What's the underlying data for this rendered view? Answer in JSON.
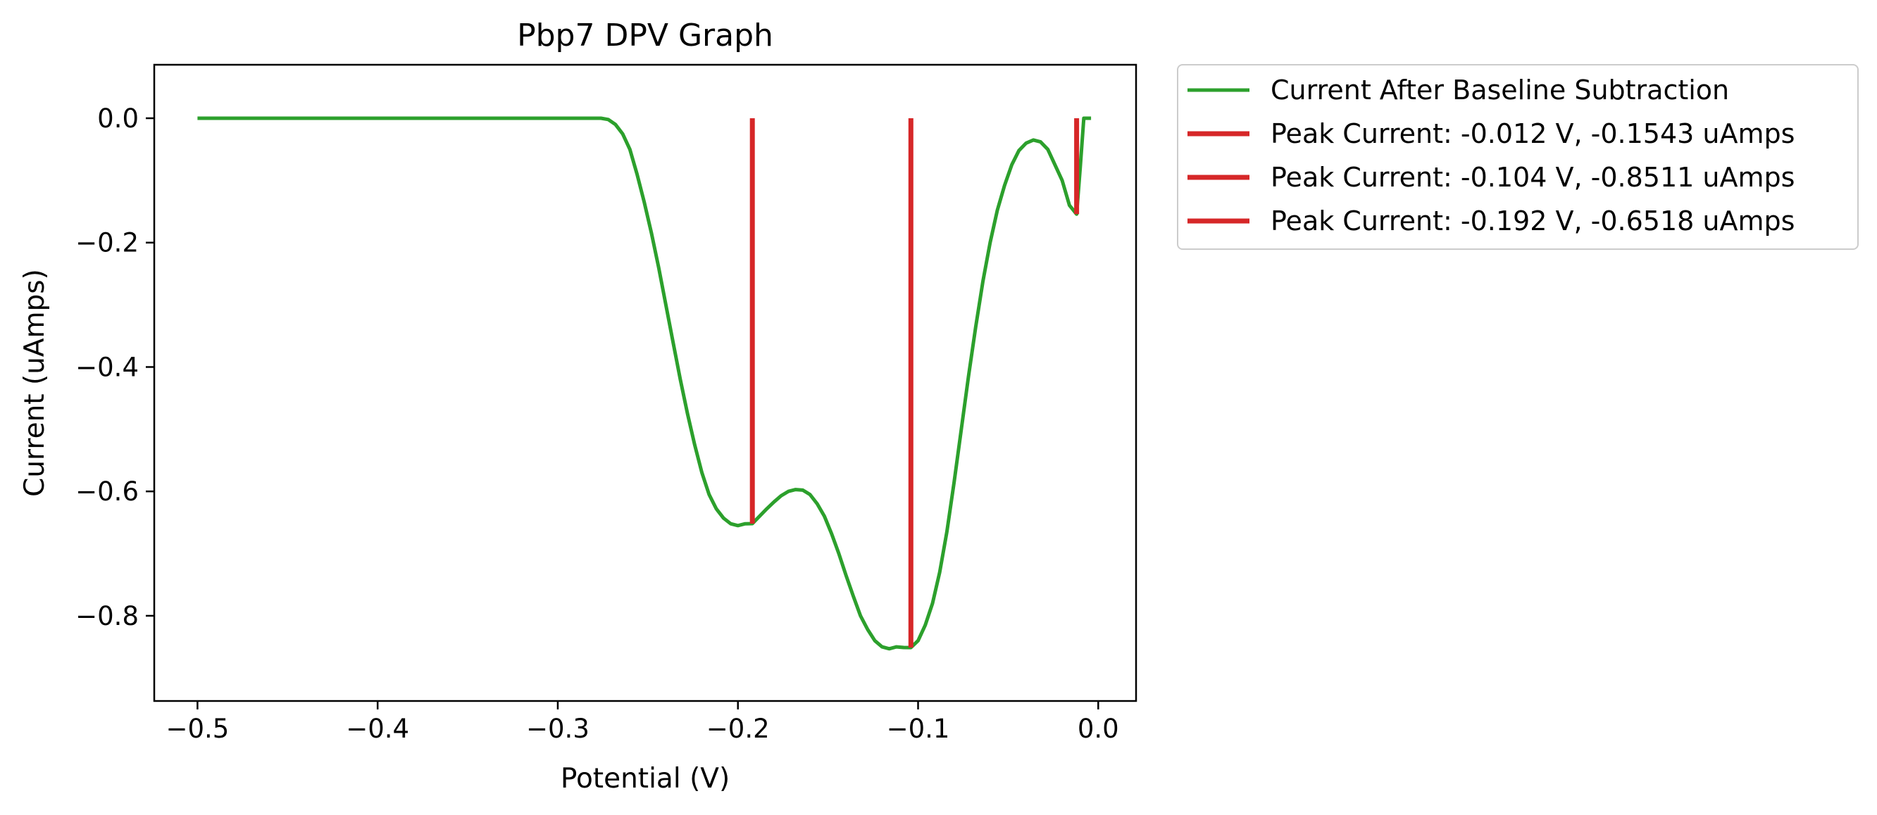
{
  "chart_data": {
    "type": "line",
    "title": "Pbp7 DPV Graph",
    "xlabel": "Potential (V)",
    "ylabel": "Current (uAmps)",
    "xlim": [
      -0.524,
      0.021
    ],
    "ylim": [
      -0.937,
      0.086
    ],
    "x_ticks": [
      -0.5,
      -0.4,
      -0.3,
      -0.2,
      -0.1,
      0.0
    ],
    "x_tick_labels": [
      "−0.5",
      "−0.4",
      "−0.3",
      "−0.2",
      "−0.1",
      "0.0"
    ],
    "y_ticks": [
      0.0,
      -0.2,
      -0.4,
      -0.6,
      -0.8
    ],
    "y_tick_labels": [
      "0.0",
      "−0.2",
      "−0.4",
      "−0.6",
      "−0.8"
    ],
    "grid": false,
    "legend": {
      "placement": "outside-upper-right"
    },
    "series": [
      {
        "name": "Current After Baseline Subtraction",
        "kind": "line",
        "color": "#2ca02c",
        "x": [
          -0.5,
          -0.48,
          -0.46,
          -0.44,
          -0.42,
          -0.4,
          -0.38,
          -0.36,
          -0.34,
          -0.32,
          -0.3,
          -0.29,
          -0.28,
          -0.276,
          -0.272,
          -0.268,
          -0.264,
          -0.26,
          -0.256,
          -0.252,
          -0.248,
          -0.244,
          -0.24,
          -0.236,
          -0.232,
          -0.228,
          -0.224,
          -0.22,
          -0.216,
          -0.212,
          -0.208,
          -0.204,
          -0.2,
          -0.196,
          -0.192,
          -0.188,
          -0.184,
          -0.18,
          -0.176,
          -0.172,
          -0.168,
          -0.164,
          -0.16,
          -0.156,
          -0.152,
          -0.148,
          -0.144,
          -0.14,
          -0.136,
          -0.132,
          -0.128,
          -0.124,
          -0.12,
          -0.116,
          -0.112,
          -0.108,
          -0.104,
          -0.1,
          -0.096,
          -0.092,
          -0.088,
          -0.084,
          -0.08,
          -0.076,
          -0.072,
          -0.068,
          -0.064,
          -0.06,
          -0.056,
          -0.052,
          -0.048,
          -0.044,
          -0.04,
          -0.036,
          -0.032,
          -0.028,
          -0.024,
          -0.02,
          -0.016,
          -0.012,
          -0.01,
          -0.008,
          -0.006,
          -0.004
        ],
        "y": [
          0.0,
          0.0,
          0.0,
          0.0,
          0.0,
          0.0,
          0.0,
          0.0,
          0.0,
          0.0,
          0.0,
          0.0,
          0.0,
          0.0,
          -0.002,
          -0.01,
          -0.025,
          -0.05,
          -0.09,
          -0.135,
          -0.185,
          -0.24,
          -0.3,
          -0.36,
          -0.42,
          -0.475,
          -0.525,
          -0.57,
          -0.605,
          -0.628,
          -0.643,
          -0.652,
          -0.655,
          -0.652,
          -0.6518,
          -0.64,
          -0.628,
          -0.617,
          -0.607,
          -0.6,
          -0.597,
          -0.598,
          -0.605,
          -0.62,
          -0.64,
          -0.668,
          -0.7,
          -0.735,
          -0.768,
          -0.8,
          -0.822,
          -0.84,
          -0.85,
          -0.853,
          -0.85,
          -0.851,
          -0.8511,
          -0.84,
          -0.815,
          -0.78,
          -0.73,
          -0.665,
          -0.585,
          -0.5,
          -0.415,
          -0.335,
          -0.262,
          -0.2,
          -0.148,
          -0.108,
          -0.075,
          -0.052,
          -0.04,
          -0.035,
          -0.038,
          -0.05,
          -0.075,
          -0.1,
          -0.14,
          -0.1543,
          -0.08,
          0.0,
          0.0,
          0.0
        ]
      },
      {
        "name": "Peak Current: -0.012 V, -0.1543 uAmps",
        "kind": "vline",
        "color": "#d62728",
        "x": -0.012,
        "y_from": 0.0,
        "y_to": -0.1543
      },
      {
        "name": "Peak Current: -0.104 V, -0.8511 uAmps",
        "kind": "vline",
        "color": "#d62728",
        "x": -0.104,
        "y_from": 0.0,
        "y_to": -0.8511
      },
      {
        "name": "Peak Current: -0.192 V, -0.6518 uAmps",
        "kind": "vline",
        "color": "#d62728",
        "x": -0.192,
        "y_from": 0.0,
        "y_to": -0.6518
      }
    ]
  }
}
